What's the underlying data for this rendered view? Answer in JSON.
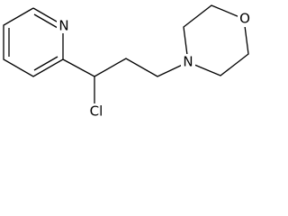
{
  "atoms": {
    "pyridine_n": "N",
    "chlorine": "Cl",
    "morpholine_n": "N",
    "morpholine_o": "O"
  }
}
